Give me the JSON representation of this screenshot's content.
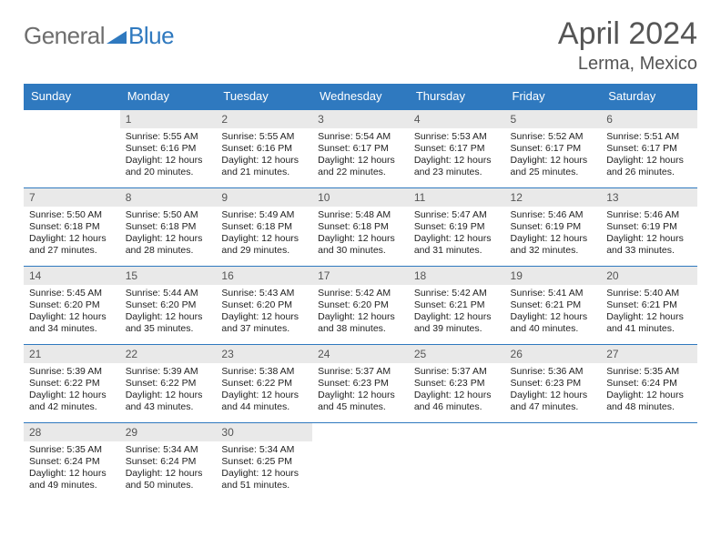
{
  "brand": {
    "word1": "General",
    "word2": "Blue"
  },
  "title": "April 2024",
  "subtitle": "Lerma, Mexico",
  "colors": {
    "accent": "#2f79bf",
    "headerStripe": "#e9e9e9",
    "text": "#222"
  },
  "weekdays": [
    "Sunday",
    "Monday",
    "Tuesday",
    "Wednesday",
    "Thursday",
    "Friday",
    "Saturday"
  ],
  "startOffset": 1,
  "days": [
    {
      "n": "1",
      "sunrise": "Sunrise: 5:55 AM",
      "sunset": "Sunset: 6:16 PM",
      "d1": "Daylight: 12 hours",
      "d2": "and 20 minutes."
    },
    {
      "n": "2",
      "sunrise": "Sunrise: 5:55 AM",
      "sunset": "Sunset: 6:16 PM",
      "d1": "Daylight: 12 hours",
      "d2": "and 21 minutes."
    },
    {
      "n": "3",
      "sunrise": "Sunrise: 5:54 AM",
      "sunset": "Sunset: 6:17 PM",
      "d1": "Daylight: 12 hours",
      "d2": "and 22 minutes."
    },
    {
      "n": "4",
      "sunrise": "Sunrise: 5:53 AM",
      "sunset": "Sunset: 6:17 PM",
      "d1": "Daylight: 12 hours",
      "d2": "and 23 minutes."
    },
    {
      "n": "5",
      "sunrise": "Sunrise: 5:52 AM",
      "sunset": "Sunset: 6:17 PM",
      "d1": "Daylight: 12 hours",
      "d2": "and 25 minutes."
    },
    {
      "n": "6",
      "sunrise": "Sunrise: 5:51 AM",
      "sunset": "Sunset: 6:17 PM",
      "d1": "Daylight: 12 hours",
      "d2": "and 26 minutes."
    },
    {
      "n": "7",
      "sunrise": "Sunrise: 5:50 AM",
      "sunset": "Sunset: 6:18 PM",
      "d1": "Daylight: 12 hours",
      "d2": "and 27 minutes."
    },
    {
      "n": "8",
      "sunrise": "Sunrise: 5:50 AM",
      "sunset": "Sunset: 6:18 PM",
      "d1": "Daylight: 12 hours",
      "d2": "and 28 minutes."
    },
    {
      "n": "9",
      "sunrise": "Sunrise: 5:49 AM",
      "sunset": "Sunset: 6:18 PM",
      "d1": "Daylight: 12 hours",
      "d2": "and 29 minutes."
    },
    {
      "n": "10",
      "sunrise": "Sunrise: 5:48 AM",
      "sunset": "Sunset: 6:18 PM",
      "d1": "Daylight: 12 hours",
      "d2": "and 30 minutes."
    },
    {
      "n": "11",
      "sunrise": "Sunrise: 5:47 AM",
      "sunset": "Sunset: 6:19 PM",
      "d1": "Daylight: 12 hours",
      "d2": "and 31 minutes."
    },
    {
      "n": "12",
      "sunrise": "Sunrise: 5:46 AM",
      "sunset": "Sunset: 6:19 PM",
      "d1": "Daylight: 12 hours",
      "d2": "and 32 minutes."
    },
    {
      "n": "13",
      "sunrise": "Sunrise: 5:46 AM",
      "sunset": "Sunset: 6:19 PM",
      "d1": "Daylight: 12 hours",
      "d2": "and 33 minutes."
    },
    {
      "n": "14",
      "sunrise": "Sunrise: 5:45 AM",
      "sunset": "Sunset: 6:20 PM",
      "d1": "Daylight: 12 hours",
      "d2": "and 34 minutes."
    },
    {
      "n": "15",
      "sunrise": "Sunrise: 5:44 AM",
      "sunset": "Sunset: 6:20 PM",
      "d1": "Daylight: 12 hours",
      "d2": "and 35 minutes."
    },
    {
      "n": "16",
      "sunrise": "Sunrise: 5:43 AM",
      "sunset": "Sunset: 6:20 PM",
      "d1": "Daylight: 12 hours",
      "d2": "and 37 minutes."
    },
    {
      "n": "17",
      "sunrise": "Sunrise: 5:42 AM",
      "sunset": "Sunset: 6:20 PM",
      "d1": "Daylight: 12 hours",
      "d2": "and 38 minutes."
    },
    {
      "n": "18",
      "sunrise": "Sunrise: 5:42 AM",
      "sunset": "Sunset: 6:21 PM",
      "d1": "Daylight: 12 hours",
      "d2": "and 39 minutes."
    },
    {
      "n": "19",
      "sunrise": "Sunrise: 5:41 AM",
      "sunset": "Sunset: 6:21 PM",
      "d1": "Daylight: 12 hours",
      "d2": "and 40 minutes."
    },
    {
      "n": "20",
      "sunrise": "Sunrise: 5:40 AM",
      "sunset": "Sunset: 6:21 PM",
      "d1": "Daylight: 12 hours",
      "d2": "and 41 minutes."
    },
    {
      "n": "21",
      "sunrise": "Sunrise: 5:39 AM",
      "sunset": "Sunset: 6:22 PM",
      "d1": "Daylight: 12 hours",
      "d2": "and 42 minutes."
    },
    {
      "n": "22",
      "sunrise": "Sunrise: 5:39 AM",
      "sunset": "Sunset: 6:22 PM",
      "d1": "Daylight: 12 hours",
      "d2": "and 43 minutes."
    },
    {
      "n": "23",
      "sunrise": "Sunrise: 5:38 AM",
      "sunset": "Sunset: 6:22 PM",
      "d1": "Daylight: 12 hours",
      "d2": "and 44 minutes."
    },
    {
      "n": "24",
      "sunrise": "Sunrise: 5:37 AM",
      "sunset": "Sunset: 6:23 PM",
      "d1": "Daylight: 12 hours",
      "d2": "and 45 minutes."
    },
    {
      "n": "25",
      "sunrise": "Sunrise: 5:37 AM",
      "sunset": "Sunset: 6:23 PM",
      "d1": "Daylight: 12 hours",
      "d2": "and 46 minutes."
    },
    {
      "n": "26",
      "sunrise": "Sunrise: 5:36 AM",
      "sunset": "Sunset: 6:23 PM",
      "d1": "Daylight: 12 hours",
      "d2": "and 47 minutes."
    },
    {
      "n": "27",
      "sunrise": "Sunrise: 5:35 AM",
      "sunset": "Sunset: 6:24 PM",
      "d1": "Daylight: 12 hours",
      "d2": "and 48 minutes."
    },
    {
      "n": "28",
      "sunrise": "Sunrise: 5:35 AM",
      "sunset": "Sunset: 6:24 PM",
      "d1": "Daylight: 12 hours",
      "d2": "and 49 minutes."
    },
    {
      "n": "29",
      "sunrise": "Sunrise: 5:34 AM",
      "sunset": "Sunset: 6:24 PM",
      "d1": "Daylight: 12 hours",
      "d2": "and 50 minutes."
    },
    {
      "n": "30",
      "sunrise": "Sunrise: 5:34 AM",
      "sunset": "Sunset: 6:25 PM",
      "d1": "Daylight: 12 hours",
      "d2": "and 51 minutes."
    }
  ]
}
